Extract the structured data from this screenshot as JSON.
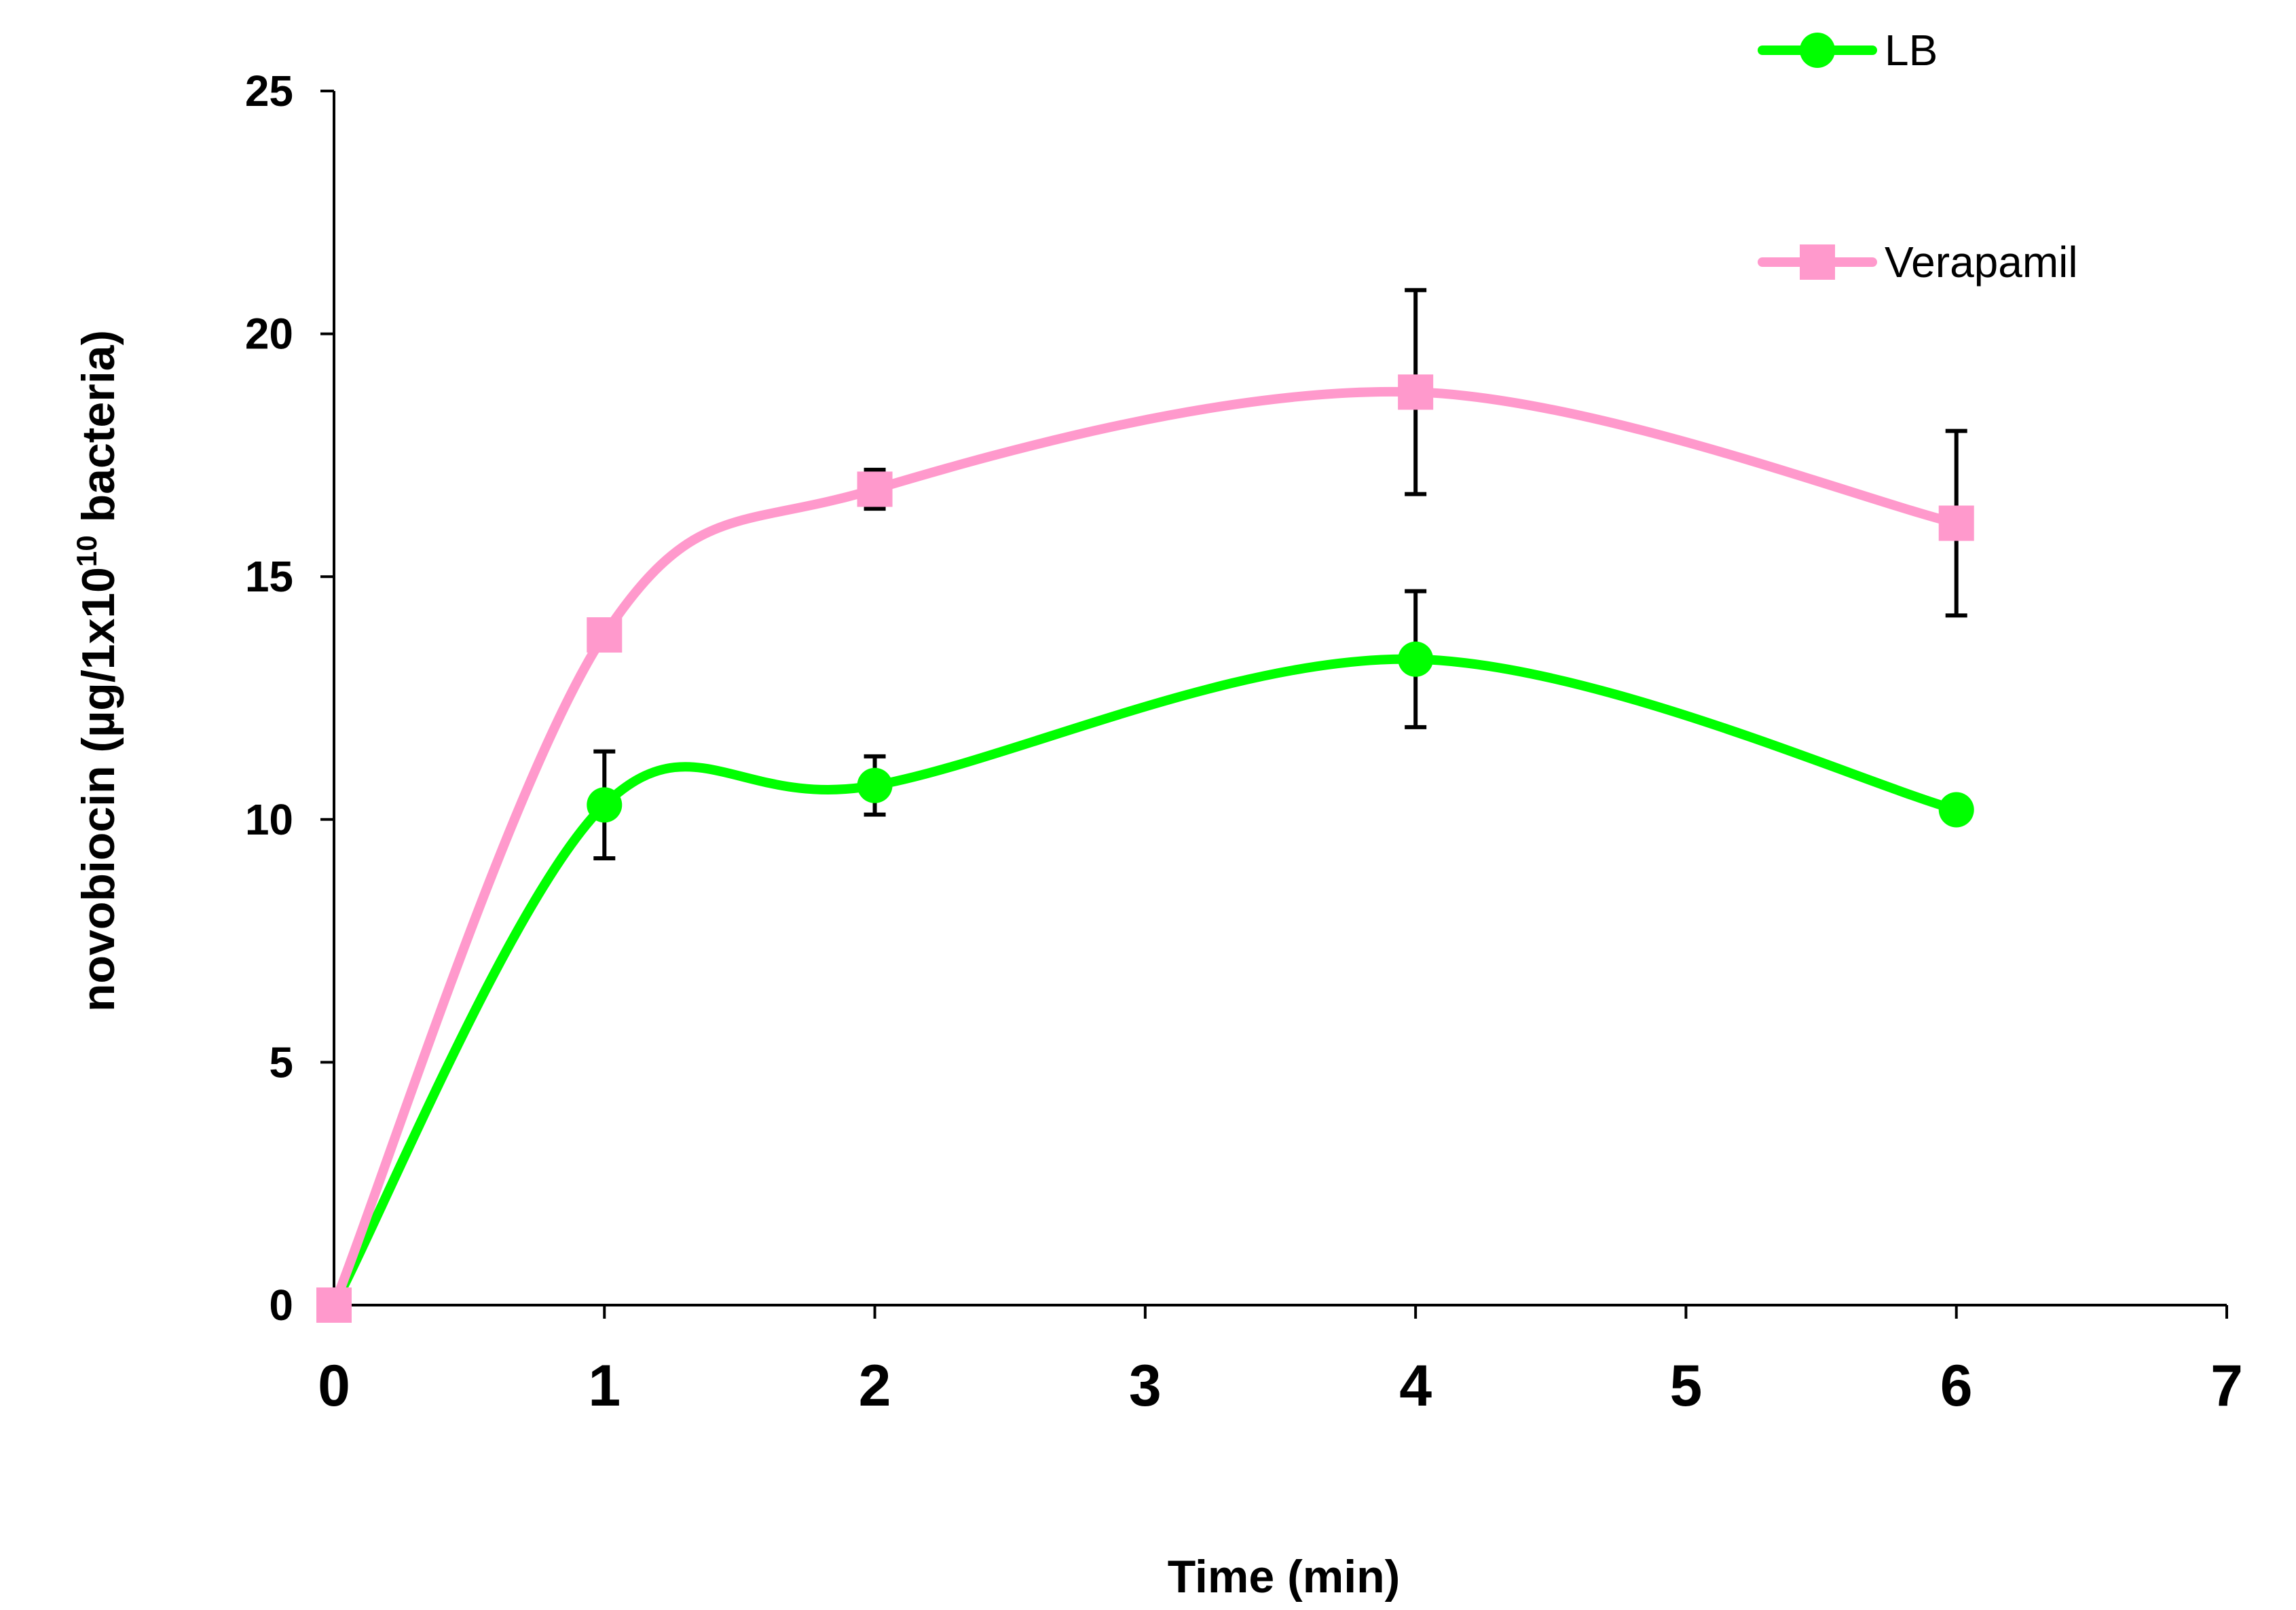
{
  "chart_data": {
    "type": "line",
    "title": "",
    "xlabel": "Time (min)",
    "ylabel": {
      "prefix": "novobiocin (µg/1x10",
      "superscript": "10",
      "suffix": " bacteria)"
    },
    "xlim": [
      0,
      7
    ],
    "ylim": [
      0,
      25
    ],
    "xticks": [
      "0",
      "1",
      "2",
      "3",
      "4",
      "5",
      "6",
      "7"
    ],
    "yticks": [
      "0",
      "5",
      "10",
      "15",
      "20",
      "25"
    ],
    "grid": false,
    "legend_position": "top-right",
    "series": [
      {
        "name": "LB",
        "color": "#00ff00",
        "marker": "circle",
        "x": [
          0,
          1,
          2,
          4,
          6
        ],
        "y": [
          0,
          10.3,
          10.7,
          13.3,
          10.2
        ],
        "yerr": [
          0,
          1.1,
          0.6,
          1.4,
          0
        ]
      },
      {
        "name": "Verapamil",
        "color": "#ff99cc",
        "marker": "square",
        "x": [
          0,
          1,
          2,
          4,
          6
        ],
        "y": [
          0,
          13.8,
          16.8,
          18.8,
          16.1
        ],
        "yerr": [
          0,
          0,
          0.4,
          2.1,
          1.9
        ]
      }
    ]
  }
}
